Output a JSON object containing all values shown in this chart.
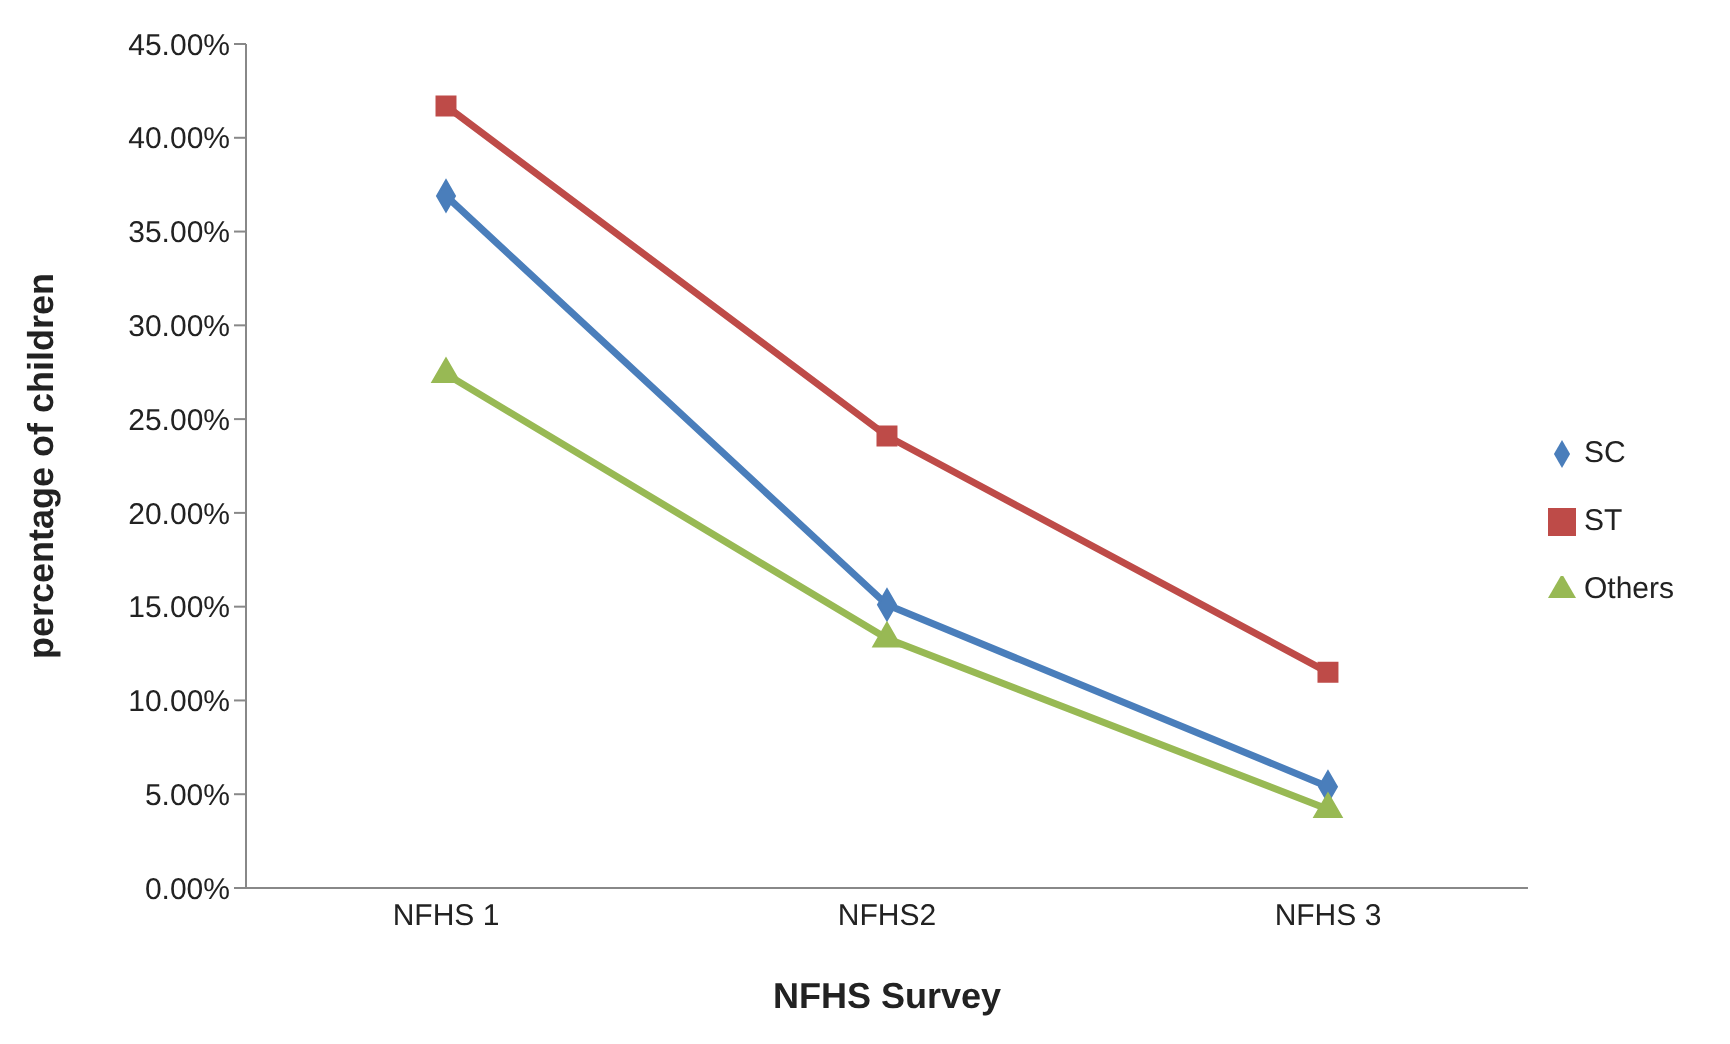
{
  "chart_data": {
    "type": "line",
    "xlabel": "NFHS Survey",
    "ylabel": "percentage of children",
    "categories": [
      "NFHS 1",
      "NFHS2",
      "NFHS 3"
    ],
    "series": [
      {
        "name": "SC",
        "color": "#4a7ebb",
        "values": [
          36.9,
          15.1,
          5.4
        ],
        "marker": "diamond"
      },
      {
        "name": "ST",
        "color": "#be4b48",
        "values": [
          41.7,
          24.1,
          11.5
        ],
        "marker": "square"
      },
      {
        "name": "Others",
        "color": "#98b954",
        "values": [
          27.4,
          13.3,
          4.2
        ],
        "marker": "triangle"
      }
    ],
    "ylim": [
      0,
      45
    ],
    "yticks": [
      {
        "value": 0,
        "label": "0.00%"
      },
      {
        "value": 5,
        "label": "5.00%"
      },
      {
        "value": 10,
        "label": "10.00%"
      },
      {
        "value": 15,
        "label": "15.00%"
      },
      {
        "value": 20,
        "label": "20.00%"
      },
      {
        "value": 25,
        "label": "25.00%"
      },
      {
        "value": 30,
        "label": "30.00%"
      },
      {
        "value": 35,
        "label": "35.00%"
      },
      {
        "value": 40,
        "label": "40.00%"
      },
      {
        "value": 45,
        "label": "45.00%"
      }
    ],
    "grid": false,
    "legend": "right",
    "line_style": "solid"
  }
}
